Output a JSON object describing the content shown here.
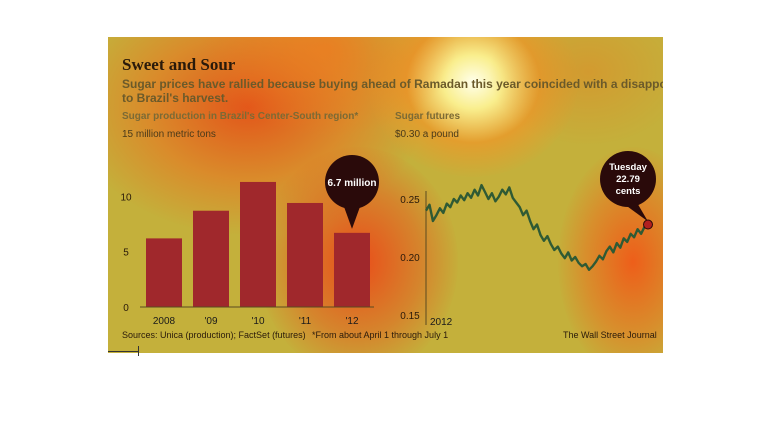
{
  "title": "Sweet and Sour",
  "subtitle_line1": "Sugar prices have rallied because buying ahead of Ramadan this year coincided with a disappointing start",
  "subtitle_line2": "to Brazil's harvest.",
  "chart_data": [
    {
      "type": "bar",
      "title": "Sugar production in Brazil's Center-South region*",
      "unit_label": "15 million metric tons",
      "categories": [
        "2008",
        "'09",
        "'10",
        "'11",
        "'12"
      ],
      "values": [
        6.2,
        8.7,
        11.3,
        9.4,
        6.7
      ],
      "yticks": [
        0,
        5,
        10
      ],
      "ylim": [
        0,
        15
      ],
      "callout": "6.7 million",
      "bar_color": "#a0282c"
    },
    {
      "type": "line",
      "title": "Sugar futures",
      "unit_label": "$0.30 a pound",
      "x_label": "2012",
      "yticks": [
        0.15,
        0.2,
        0.25
      ],
      "ylim": [
        0.15,
        0.3
      ],
      "series": [
        {
          "values": [
            0.24,
            0.245,
            0.231,
            0.236,
            0.242,
            0.238,
            0.246,
            0.243,
            0.25,
            0.247,
            0.253,
            0.249,
            0.255,
            0.251,
            0.258,
            0.253,
            0.262,
            0.256,
            0.25,
            0.255,
            0.248,
            0.252,
            0.258,
            0.254,
            0.26,
            0.251,
            0.247,
            0.243,
            0.236,
            0.24,
            0.231,
            0.224,
            0.228,
            0.219,
            0.214,
            0.218,
            0.211,
            0.206,
            0.209,
            0.203,
            0.199,
            0.204,
            0.197,
            0.2,
            0.195,
            0.192,
            0.194,
            0.189,
            0.192,
            0.196,
            0.201,
            0.198,
            0.205,
            0.209,
            0.204,
            0.212,
            0.208,
            0.216,
            0.213,
            0.22,
            0.217,
            0.224,
            0.22,
            0.226,
            0.228
          ],
          "color": "#2f5a34"
        }
      ],
      "callout_line1": "Tuesday",
      "callout_line2": "22.79",
      "callout_line3": "cents"
    }
  ],
  "footer": {
    "sources": "Sources: Unica (production); FactSet (futures)",
    "note": "*From about April 1 through July 1",
    "credit": "The Wall Street Journal"
  }
}
